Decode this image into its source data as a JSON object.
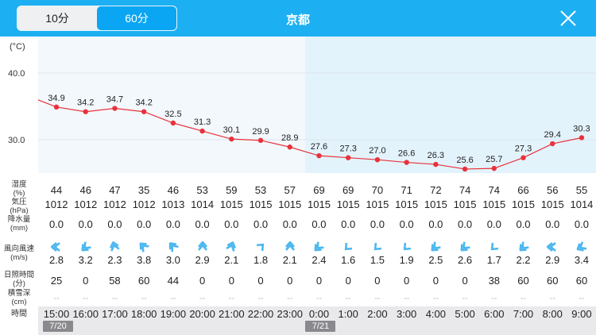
{
  "header": {
    "title": "京都",
    "segments": [
      {
        "label": "10分",
        "selected": false
      },
      {
        "label": "60分",
        "selected": true
      }
    ],
    "close_icon": "close-icon",
    "bg_color": "#1cb0f2"
  },
  "chart_data": {
    "type": "line",
    "ylabel": "(°C)",
    "y_ticks": [
      "40.0",
      "30.0"
    ],
    "ylim": [
      23,
      42
    ],
    "grid": true,
    "line_color": "#e8323a",
    "x": [
      "15:00",
      "16:00",
      "17:00",
      "18:00",
      "19:00",
      "20:00",
      "21:00",
      "22:00",
      "23:00",
      "0:00",
      "1:00",
      "2:00",
      "3:00",
      "4:00",
      "5:00",
      "6:00",
      "7:00",
      "8:00",
      "9:00"
    ],
    "values": [
      34.9,
      34.2,
      34.7,
      34.2,
      32.5,
      31.3,
      30.1,
      29.9,
      28.9,
      27.6,
      27.3,
      27.0,
      26.6,
      26.3,
      25.6,
      25.7,
      27.3,
      29.4,
      30.3
    ],
    "value_labels": [
      "34.9",
      "34.2",
      "34.7",
      "34.2",
      "32.5",
      "31.3",
      "30.1",
      "29.9",
      "28.9",
      "27.6",
      "27.3",
      "27.0",
      "26.6",
      "26.3",
      "25.6",
      "25.7",
      "27.3",
      "29.4",
      "30.3"
    ],
    "shaded_from": "0:00"
  },
  "rows": {
    "humidity": {
      "label1": "湿度",
      "label2": "(%)",
      "values": [
        "44",
        "46",
        "47",
        "35",
        "46",
        "53",
        "59",
        "53",
        "57",
        "69",
        "69",
        "70",
        "71",
        "72",
        "74",
        "74",
        "66",
        "56",
        "55"
      ]
    },
    "pressure": {
      "label1": "気圧",
      "label2": "(hPa)",
      "values": [
        "1012",
        "1012",
        "1012",
        "1012",
        "1013",
        "1014",
        "1015",
        "1015",
        "1015",
        "1015",
        "1015",
        "1015",
        "1015",
        "1015",
        "1015",
        "1015",
        "1015",
        "1015",
        "1014"
      ]
    },
    "precip": {
      "label1": "降水量",
      "label2": "(mm)",
      "values": [
        "0.0",
        "0.0",
        "0.0",
        "0.0",
        "0.0",
        "0.0",
        "0.0",
        "0.0",
        "0.0",
        "0.0",
        "0.0",
        "0.0",
        "0.0",
        "0.0",
        "0.0",
        "0.0",
        "0.0",
        "0.0",
        "0.0"
      ]
    },
    "wind": {
      "label1": "風向風速",
      "label2": "(m/s)",
      "values": [
        "2.8",
        "3.2",
        "2.3",
        "3.8",
        "3.0",
        "2.9",
        "2.1",
        "1.8",
        "2.1",
        "2.4",
        "1.6",
        "1.5",
        "1.9",
        "2.5",
        "2.6",
        "1.7",
        "2.2",
        "2.9",
        "3.4"
      ],
      "arrow_deg": [
        270,
        225,
        345,
        315,
        320,
        0,
        20,
        45,
        0,
        225,
        225,
        225,
        225,
        225,
        225,
        225,
        225,
        270,
        240
      ],
      "arrow_count": [
        2,
        2,
        2,
        2,
        2,
        2,
        2,
        1,
        2,
        2,
        1,
        1,
        1,
        2,
        2,
        1,
        2,
        2,
        2
      ],
      "arrow_color": "#4cb8ef"
    },
    "sunshine": {
      "label1": "日照時間",
      "label2": "(分)",
      "values": [
        "25",
        "0",
        "58",
        "60",
        "44",
        "0",
        "0",
        "0",
        "0",
        "0",
        "0",
        "0",
        "0",
        "0",
        "0",
        "38",
        "60",
        "60",
        "60"
      ]
    },
    "snow": {
      "label1": "積雪深",
      "label2": "(cm)",
      "values": [
        "--",
        "--",
        "--",
        "--",
        "--",
        "--",
        "--",
        "--",
        "--",
        "--",
        "--",
        "--",
        "--",
        "--",
        "--",
        "--",
        "--",
        "--",
        "--"
      ]
    },
    "time": {
      "label": "時間",
      "values": [
        "15:00",
        "16:00",
        "17:00",
        "18:00",
        "19:00",
        "20:00",
        "21:00",
        "22:00",
        "23:00",
        "0:00",
        "1:00",
        "2:00",
        "3:00",
        "4:00",
        "5:00",
        "6:00",
        "7:00",
        "8:00",
        "9:00"
      ]
    }
  },
  "dates": [
    {
      "label": "7/20",
      "at": "15:00"
    },
    {
      "label": "7/21",
      "at": "0:00"
    }
  ]
}
